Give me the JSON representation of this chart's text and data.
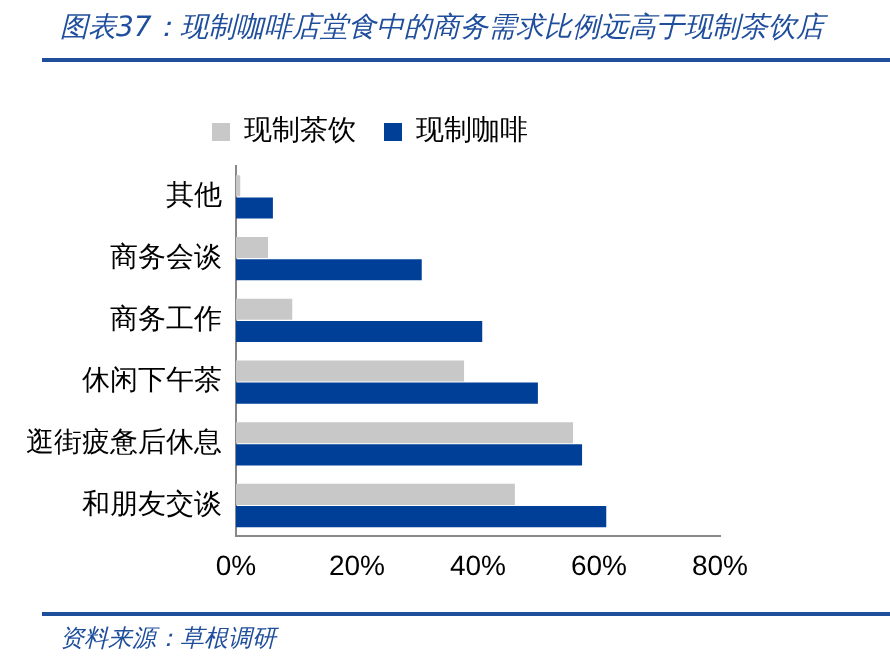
{
  "chart_data": {
    "type": "bar",
    "orientation": "horizontal",
    "title": "图表37：现制咖啡店堂食中的商务需求比例远高于现制茶饮店",
    "annotations": [
      "资料来源：草根调研"
    ],
    "categories": [
      "其他",
      "商务会谈",
      "商务工作",
      "休闲下午茶",
      "逛街疲惫后休息",
      "和朋友交谈"
    ],
    "series": [
      {
        "name": "现制茶饮",
        "color": "#c8c8c8",
        "values": [
          0.7,
          5.3,
          9.3,
          37.7,
          55.7,
          46.1
        ]
      },
      {
        "name": "现制咖啡",
        "color": "#003f98",
        "values": [
          6.1,
          30.7,
          40.7,
          49.9,
          57.2,
          61.2
        ]
      }
    ],
    "xlim": [
      0,
      80
    ],
    "xticks": [
      {
        "value": 0,
        "label": "0%"
      },
      {
        "value": 20,
        "label": "20%"
      },
      {
        "value": 40,
        "label": "40%"
      },
      {
        "value": 60,
        "label": "60%"
      },
      {
        "value": 80,
        "label": "80%"
      }
    ],
    "grid": false,
    "legend": "top"
  }
}
